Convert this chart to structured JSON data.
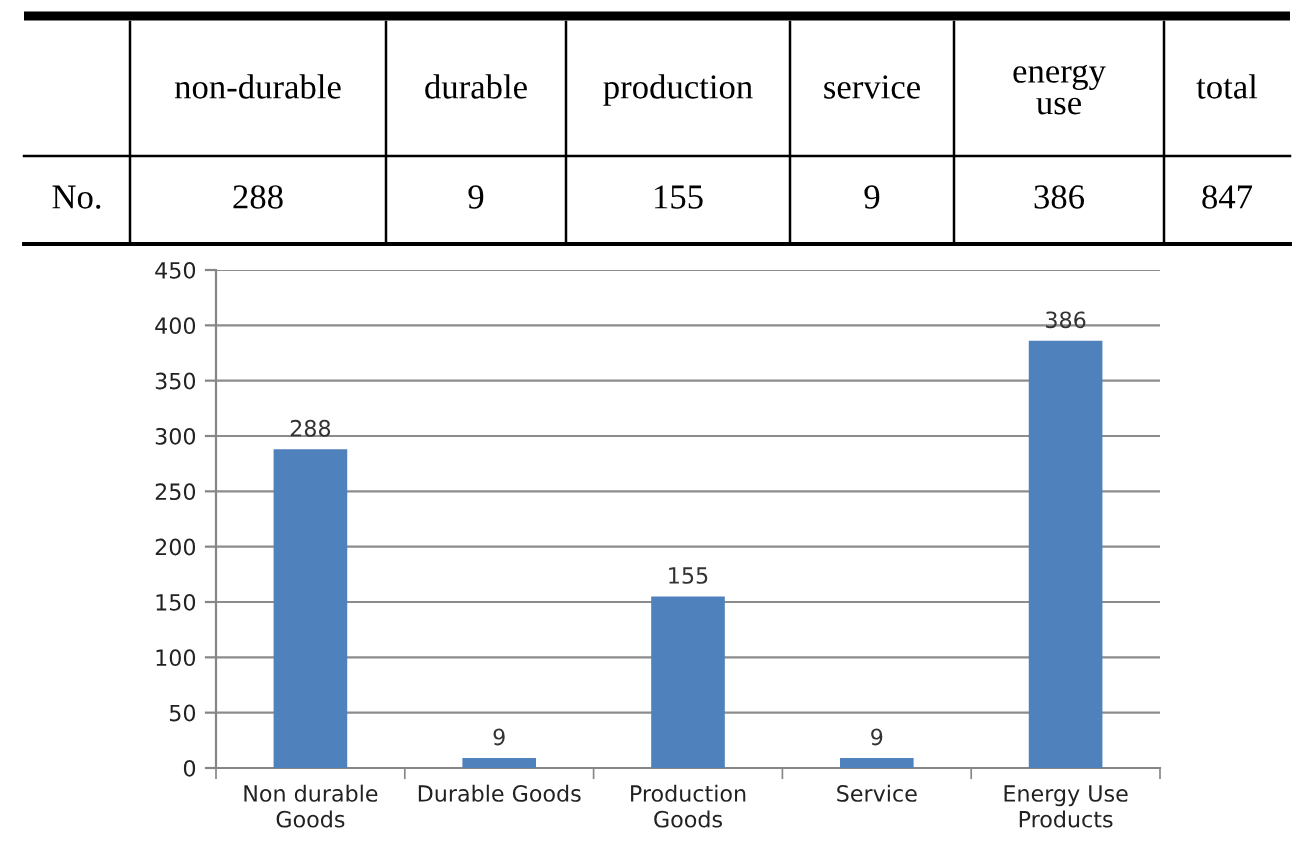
{
  "chart_data": [
    {
      "type": "other",
      "categories": [
        "non-durable",
        "durable",
        "production",
        "service",
        "energy\nuse",
        "total"
      ],
      "y_categories": [
        "No."
      ],
      "values": [
        288,
        9,
        155,
        9,
        386,
        847
      ],
      "data_labels": true
    },
    {
      "type": "bar",
      "categories": [
        "Non durable\nGoods",
        "Durable Goods",
        "Production\nGoods",
        "Service",
        "Energy Use\nProducts"
      ],
      "values": [
        288,
        9,
        155,
        9,
        386
      ],
      "color": "#4f81bd",
      "ylim": [
        0,
        450
      ],
      "yticks": [
        0,
        50,
        100,
        150,
        200,
        250,
        300,
        350,
        400,
        450
      ],
      "grid": "y",
      "data_labels": true
    }
  ]
}
